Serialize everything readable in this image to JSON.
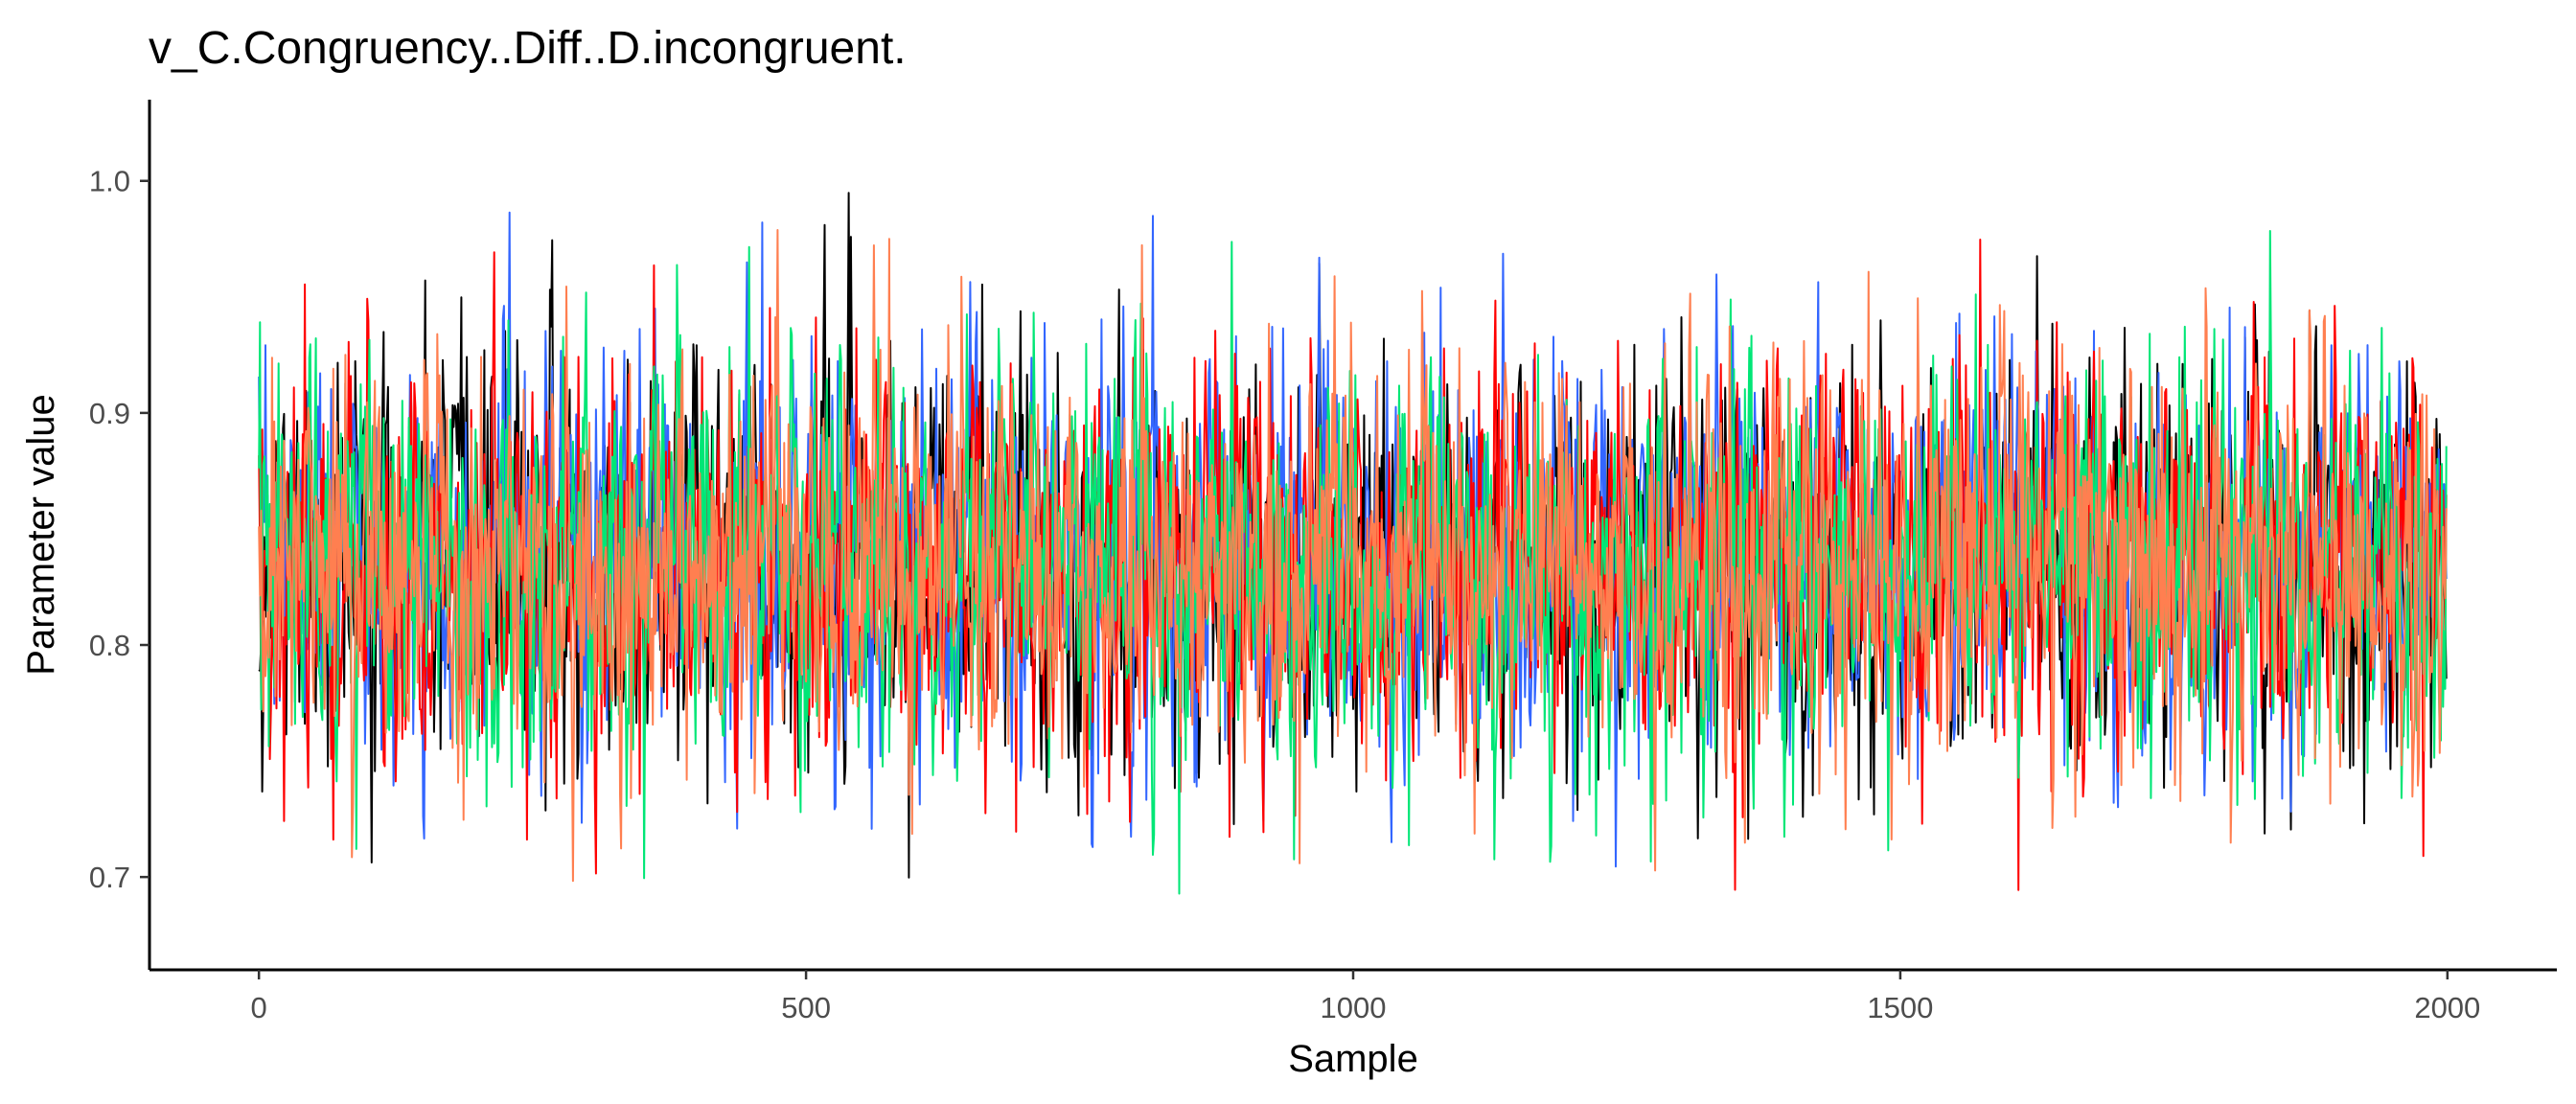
{
  "chart_data": {
    "type": "line",
    "title": "v_C.Congruency..Diff..D.incongruent.",
    "xlabel": "Sample",
    "ylabel": "Parameter value",
    "xlim": [
      -100,
      2100
    ],
    "ylim": [
      0.66,
      1.035
    ],
    "x_ticks": [
      {
        "value": 0,
        "label": "0"
      },
      {
        "value": 500,
        "label": "500"
      },
      {
        "value": 1000,
        "label": "1000"
      },
      {
        "value": 1500,
        "label": "1500"
      },
      {
        "value": 2000,
        "label": "2000"
      }
    ],
    "y_ticks": [
      {
        "value": 0.7,
        "label": "0.7"
      },
      {
        "value": 0.8,
        "label": "0.8"
      },
      {
        "value": 0.9,
        "label": "0.9"
      },
      {
        "value": 1.0,
        "label": "1.0"
      }
    ],
    "grid": false,
    "legend": "none",
    "n_samples": 2000,
    "series_summary": {
      "mean": 0.835,
      "sd": 0.042,
      "min": 0.68,
      "max": 1.022
    },
    "series": [
      {
        "color": "#000000",
        "seed": 11
      },
      {
        "color": "#3366ff",
        "seed": 23
      },
      {
        "color": "#ff0000",
        "seed": 37
      },
      {
        "color": "#00e676",
        "seed": 53
      },
      {
        "color": "#ff7f50",
        "seed": 71
      }
    ]
  }
}
